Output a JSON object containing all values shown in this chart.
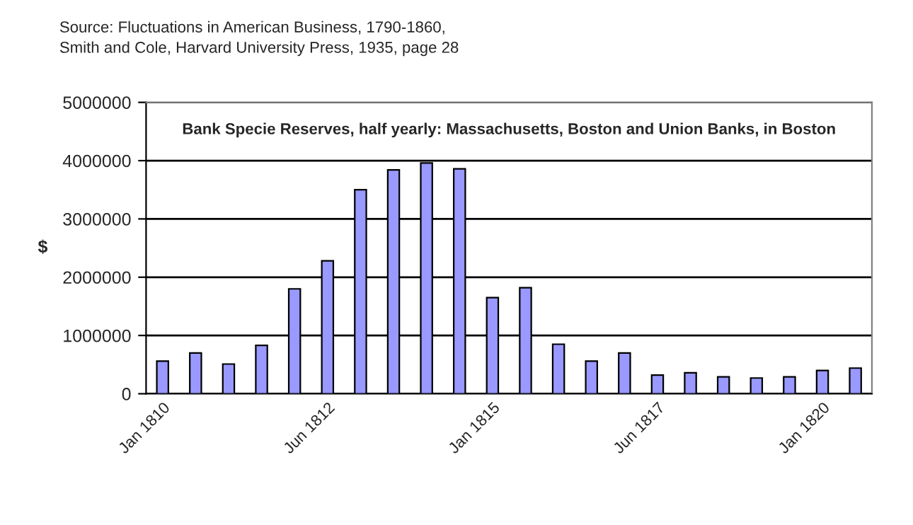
{
  "chart_data": {
    "type": "bar",
    "title": "Bank Specie Reserves, half yearly: Massachusetts, Boston and Union Banks, in Boston",
    "ylabel": "$",
    "annotations": [
      "Source: Fluctuations in American Business, 1790-1860,\nSmith and Cole, Harvard University Press, 1935, page 28"
    ],
    "categories": [
      "Jan 1810",
      null,
      null,
      null,
      null,
      "Jun 1812",
      null,
      null,
      null,
      null,
      "Jan 1815",
      null,
      null,
      null,
      null,
      "Jun 1817",
      null,
      null,
      null,
      null,
      "Jan 1820",
      null
    ],
    "values": [
      560000,
      700000,
      510000,
      830000,
      1800000,
      2280000,
      3500000,
      3840000,
      3960000,
      3860000,
      1650000,
      1820000,
      850000,
      560000,
      700000,
      320000,
      360000,
      290000,
      270000,
      290000,
      400000,
      440000
    ],
    "color": "#9999ff",
    "ylim": [
      0,
      5000000
    ],
    "yticks": [
      0,
      1000000,
      2000000,
      3000000,
      4000000,
      5000000
    ],
    "grid": "y"
  }
}
